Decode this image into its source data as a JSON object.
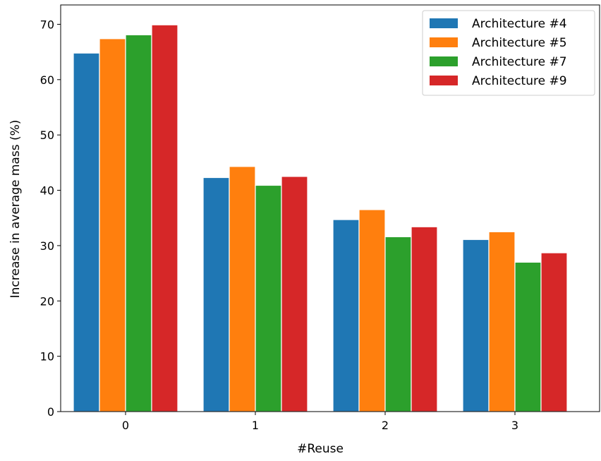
{
  "chart_data": {
    "type": "bar",
    "title": "",
    "xlabel": "#Reuse",
    "ylabel": "Increase in average mass (%)",
    "categories": [
      "0",
      "1",
      "2",
      "3"
    ],
    "ylim": [
      0,
      73.5
    ],
    "yticks": [
      "0",
      "10",
      "20",
      "30",
      "40",
      "50",
      "60",
      "70"
    ],
    "grid": false,
    "legend_position": "top-right",
    "series": [
      {
        "name": "Architecture #4",
        "color": "#1f77b4",
        "values": [
          64.8,
          42.3,
          34.7,
          31.1
        ]
      },
      {
        "name": "Architecture #5",
        "color": "#ff7f0e",
        "values": [
          67.4,
          44.3,
          36.5,
          32.5
        ]
      },
      {
        "name": "Architecture #7",
        "color": "#2ca02c",
        "values": [
          68.1,
          40.9,
          31.6,
          27.0
        ]
      },
      {
        "name": "Architecture #9",
        "color": "#d62728",
        "values": [
          69.9,
          42.5,
          33.4,
          28.7
        ]
      }
    ]
  }
}
